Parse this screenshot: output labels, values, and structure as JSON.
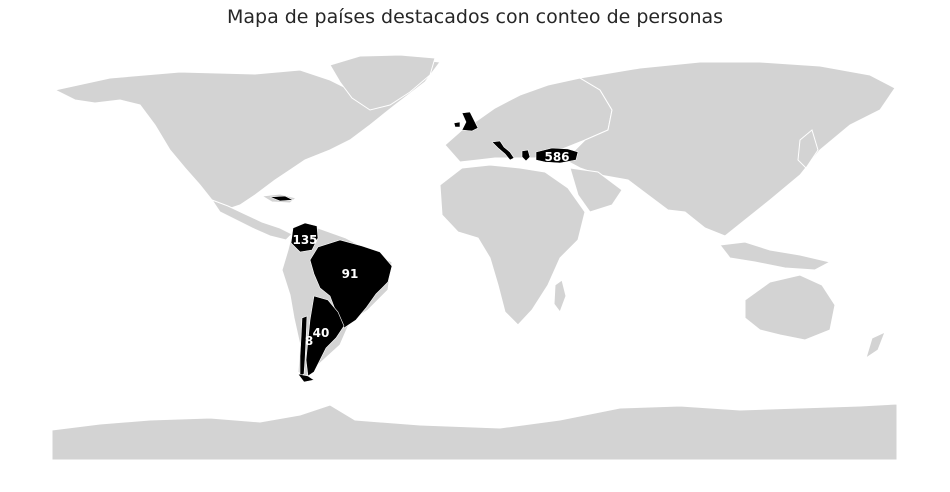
{
  "title": "Mapa de países destacados con conteo de personas",
  "colors": {
    "background": "#ffffff",
    "land": "#d3d3d3",
    "highlight": "#000000",
    "label": "#ffffff"
  },
  "countries": [
    {
      "name": "Turkey",
      "count": "586"
    },
    {
      "name": "Colombia",
      "count": "135"
    },
    {
      "name": "Brazil",
      "count": "91"
    },
    {
      "name": "Argentina",
      "count": "40"
    },
    {
      "name": "Chile",
      "count": "8"
    },
    {
      "name": "United Kingdom",
      "count": ""
    },
    {
      "name": "Italy",
      "count": ""
    },
    {
      "name": "Greece",
      "count": ""
    },
    {
      "name": "Cuba",
      "count": ""
    }
  ]
}
